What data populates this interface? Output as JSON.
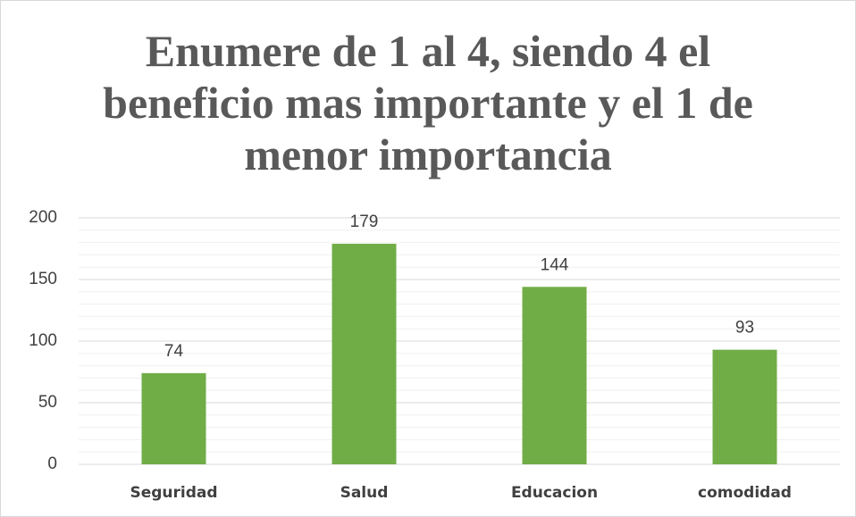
{
  "chart_data": {
    "type": "bar",
    "title": "Enumere de 1 al 4, siendo 4 el beneficio mas importante y el 1 de menor importancia",
    "categories": [
      "Seguridad",
      "Salud",
      "Educacion",
      "comodidad"
    ],
    "values": [
      74,
      179,
      144,
      93
    ],
    "color": "#70ad47",
    "ylim": [
      0,
      200
    ],
    "yticks": [
      0,
      50,
      100,
      150,
      200
    ],
    "minor_yticks": [
      10,
      20,
      30,
      40,
      60,
      70,
      80,
      90,
      110,
      120,
      130,
      140,
      160,
      170,
      180,
      190
    ],
    "grid": true
  }
}
